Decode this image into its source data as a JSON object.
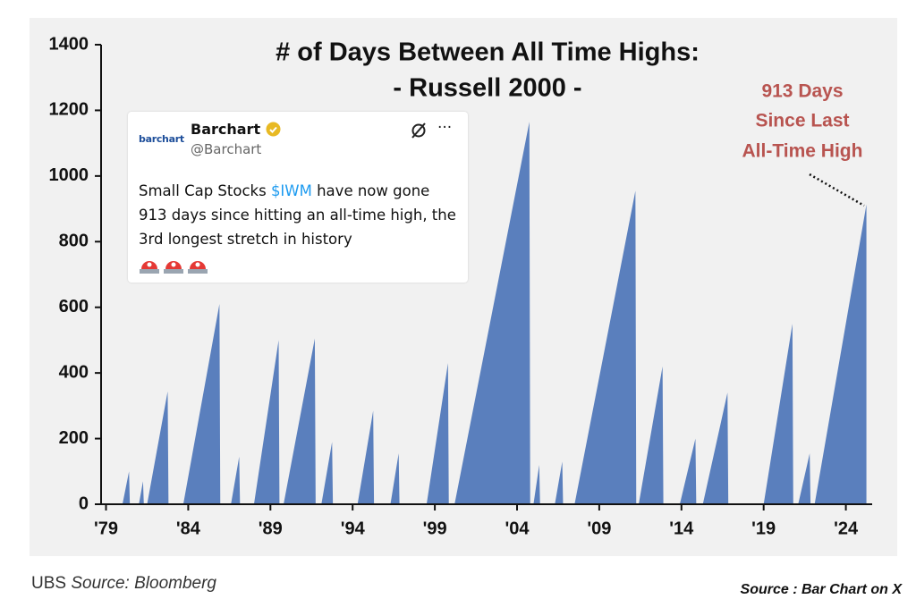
{
  "chart_data": {
    "type": "area",
    "title": "# of Days Between All Time Highs:",
    "subtitle": "- Russell 2000 -",
    "annotation": [
      "913 Days",
      "Since Last",
      "All-Time High"
    ],
    "color": "#5a7fbd",
    "x": [
      1979.0,
      1980.0,
      1980.4,
      1980.45,
      1981.0,
      1981.25,
      1981.3,
      1981.5,
      1982.75,
      1982.8,
      1983.7,
      1985.9,
      1985.95,
      1986.6,
      1987.1,
      1987.15,
      1988.0,
      1989.5,
      1989.55,
      1989.8,
      1991.7,
      1991.75,
      1992.1,
      1992.75,
      1992.8,
      1994.3,
      1995.25,
      1995.3,
      1996.3,
      1996.8,
      1996.85,
      1998.5,
      1999.8,
      1999.85,
      2000.2,
      2004.75,
      2004.8,
      2005.0,
      2005.35,
      2005.4,
      2006.3,
      2006.75,
      2006.8,
      2007.5,
      2011.2,
      2011.25,
      2011.4,
      2012.85,
      2012.9,
      2013.9,
      2014.85,
      2014.9,
      2015.3,
      2016.8,
      2016.85,
      2019.0,
      2020.75,
      2020.8,
      2021.1,
      2021.8,
      2021.85,
      2022.1,
      2025.25
    ],
    "values": [
      0,
      0,
      100,
      0,
      0,
      70,
      0,
      0,
      344,
      0,
      0,
      610,
      0,
      0,
      145,
      0,
      0,
      500,
      0,
      0,
      505,
      0,
      0,
      190,
      0,
      0,
      285,
      0,
      0,
      155,
      0,
      0,
      430,
      0,
      0,
      1165,
      0,
      0,
      120,
      0,
      0,
      130,
      0,
      0,
      955,
      0,
      0,
      420,
      0,
      0,
      200,
      0,
      0,
      340,
      0,
      0,
      550,
      0,
      0,
      155,
      0,
      0,
      913
    ],
    "xlim": [
      1978.7,
      2025.6
    ],
    "ylim": [
      0,
      1400
    ],
    "yticks": [
      0,
      200,
      400,
      600,
      800,
      1000,
      1200,
      1400
    ],
    "xticks": [
      {
        "value": 1979,
        "label": "'79"
      },
      {
        "value": 1984,
        "label": "'84"
      },
      {
        "value": 1989,
        "label": "'89"
      },
      {
        "value": 1994,
        "label": "'94"
      },
      {
        "value": 1999,
        "label": "'99"
      },
      {
        "value": 2004,
        "label": "'04"
      },
      {
        "value": 2009,
        "label": "'09"
      },
      {
        "value": 2014,
        "label": "'14"
      },
      {
        "value": 2019,
        "label": "'19"
      },
      {
        "value": 2024,
        "label": "'24"
      }
    ]
  },
  "tweet": {
    "logo": "barchart",
    "name": "Barchart",
    "handle": "@Barchart",
    "menu": "···",
    "text_before": "Small Cap Stocks ",
    "ticker": "$IWM",
    "text_after": " have now gone 913 days since hitting an all-time high, the 3rd longest stretch in history"
  },
  "footer": {
    "left_prefix": "UBS ",
    "left_italic": "Source: Bloomberg",
    "right": "Source : Bar Chart on X"
  }
}
